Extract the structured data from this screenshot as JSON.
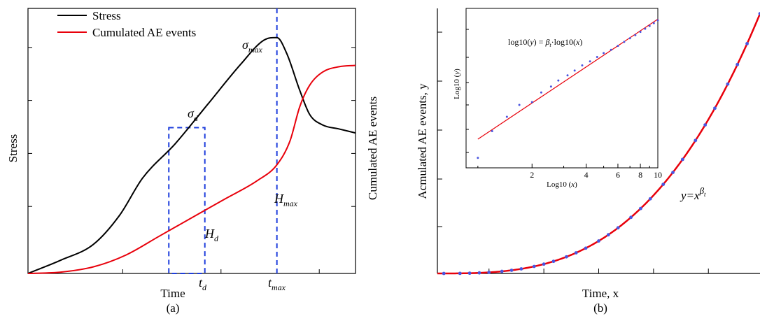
{
  "chart_data": [
    {
      "type": "line",
      "panel_label": "(a)",
      "xlabel": "Time",
      "ylabel_left": "Stress",
      "ylabel_right": "Cumulated AE events",
      "xlim": [
        0,
        10
      ],
      "ylim": [
        0,
        10
      ],
      "legend": {
        "placement": "top-left",
        "entries": [
          "Stress",
          "Cumulated AE events"
        ]
      },
      "series": [
        {
          "name": "Stress",
          "color": "#000000",
          "x": [
            0,
            1,
            2,
            2.8,
            3.5,
            4.5,
            5.5,
            6.5,
            7.2,
            7.6,
            7.9,
            8.3,
            8.6,
            9,
            9.5,
            10
          ],
          "y": [
            0,
            0.5,
            1.1,
            2.2,
            3.6,
            4.9,
            6.4,
            7.9,
            8.8,
            8.9,
            8.3,
            6.9,
            6.0,
            5.6,
            5.45,
            5.3
          ]
        },
        {
          "name": "Cumulated AE events",
          "color": "#e8000b",
          "x": [
            0,
            1,
            2,
            3,
            4,
            5,
            6,
            7,
            7.6,
            8,
            8.3,
            8.6,
            9,
            9.5,
            10
          ],
          "y": [
            0,
            0.05,
            0.25,
            0.7,
            1.4,
            2.1,
            2.8,
            3.5,
            4.1,
            5.0,
            6.3,
            7.1,
            7.6,
            7.8,
            7.85
          ]
        }
      ],
      "annotations": {
        "sigma_max": {
          "base": "σ",
          "sub": "max"
        },
        "sigma_d": {
          "base": "σ",
          "sub": "d"
        },
        "H_max": {
          "base": "H",
          "sub": "max"
        },
        "H_d": {
          "base": "H",
          "sub": "d"
        },
        "t_d": {
          "base": "t",
          "sub": "d"
        },
        "t_max": {
          "base": "t",
          "sub": "max"
        }
      },
      "t_d": 5.4,
      "t_max": 7.6,
      "box": {
        "x": [
          4.3,
          5.4
        ],
        "y": [
          0,
          5.5
        ]
      }
    },
    {
      "type": "scatter",
      "panel_label": "(b)",
      "xlabel": "Time, x",
      "ylabel": "Acmulated AE events, y",
      "fit_label": {
        "base": "y=x",
        "sup": "β",
        "sup_sub": "t"
      },
      "xlim": [
        0,
        10
      ],
      "ylim": [
        0,
        10
      ],
      "beta_t": 3,
      "points_x": [
        0.2,
        0.7,
        1,
        1.3,
        1.6,
        2,
        2.3,
        2.6,
        3,
        3.3,
        3.6,
        4,
        4.3,
        4.6,
        5,
        5.3,
        5.6,
        6,
        6.3,
        6.6,
        7,
        7.3,
        7.6,
        8,
        8.3,
        8.6,
        9,
        9.3,
        9.6,
        10
      ],
      "inset": {
        "type": "scatter",
        "xlabel": "Log10 (x)",
        "ylabel": "Log10 (y)",
        "equation": "log10(y) = βt·log10(x)",
        "equation_parts": {
          "pre": "log10(",
          "y": "y",
          "mid": ") = ",
          "beta": "β",
          "beta_sub": "t",
          "post": "·log10(",
          "x": "x",
          "end": ")"
        },
        "x_ticks": [
          "2",
          "4",
          "6",
          "8",
          "10"
        ],
        "x_tick_values": [
          2,
          4,
          6,
          8,
          10
        ],
        "xlim_log": [
          0.86,
          10
        ],
        "points": [
          [
            1.0,
            2.5
          ],
          [
            1.2,
            9.2
          ],
          [
            1.45,
            12.8
          ],
          [
            1.7,
            15.8
          ],
          [
            2.0,
            16.5
          ],
          [
            2.25,
            18.9
          ],
          [
            2.55,
            20.4
          ],
          [
            2.8,
            21.9
          ],
          [
            3.15,
            23.2
          ],
          [
            3.45,
            24.4
          ],
          [
            3.8,
            25.7
          ],
          [
            4.2,
            26.7
          ],
          [
            4.6,
            27.8
          ],
          [
            5.0,
            28.8
          ],
          [
            5.5,
            29.6
          ],
          [
            6.0,
            30.6
          ],
          [
            6.5,
            31.6
          ],
          [
            7.0,
            32.5
          ],
          [
            7.5,
            33.3
          ],
          [
            8.0,
            34.1
          ],
          [
            8.5,
            34.9
          ],
          [
            9.0,
            35.6
          ],
          [
            9.5,
            36.3
          ],
          [
            10.0,
            37.0
          ]
        ]
      }
    }
  ]
}
